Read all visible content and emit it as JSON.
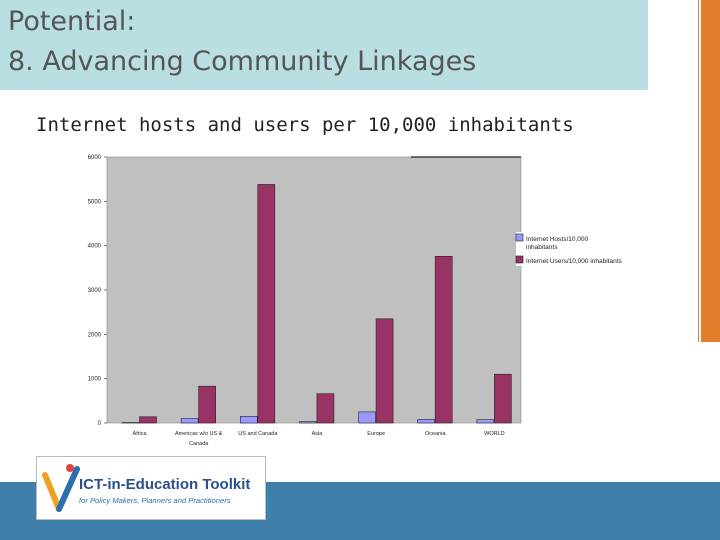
{
  "slide": {
    "title_line1": "Potential:",
    "title_line2": "8. Advancing Community Linkages",
    "subtitle": "Internet hosts and users per 10,000 inhabitants"
  },
  "logo": {
    "name": "ICT-in-Education Toolkit",
    "tagline": "for Policy Makers, Planners and Practitioners"
  },
  "colors": {
    "hosts": "#9999ff",
    "users": "#993366",
    "plot_bg": "#c0c0c0",
    "title_bg": "#b9dfe3",
    "accent_orange": "#e27d2b",
    "footer_blue": "#3e7fac"
  },
  "chart_data": {
    "type": "bar",
    "title": "Internet hosts and users per 10,000 inhabitants",
    "categories": [
      "Africa",
      "Americas w/o US & Canada",
      "US and Canada",
      "Asia",
      "Europe",
      "Oceania",
      "WORLD"
    ],
    "series": [
      {
        "name": "Internet Hosts/10,000 inhabitants",
        "values": [
          10,
          100,
          150,
          30,
          250,
          80,
          75
        ]
      },
      {
        "name": "Internet Users/10,000 inhabitants",
        "values": [
          140,
          830,
          5380,
          660,
          2350,
          3760,
          1100
        ]
      }
    ],
    "ylim": [
      0,
      6000
    ],
    "yticks": [
      0,
      1000,
      2000,
      3000,
      4000,
      5000,
      6000
    ],
    "grid": false,
    "legend": "right"
  }
}
